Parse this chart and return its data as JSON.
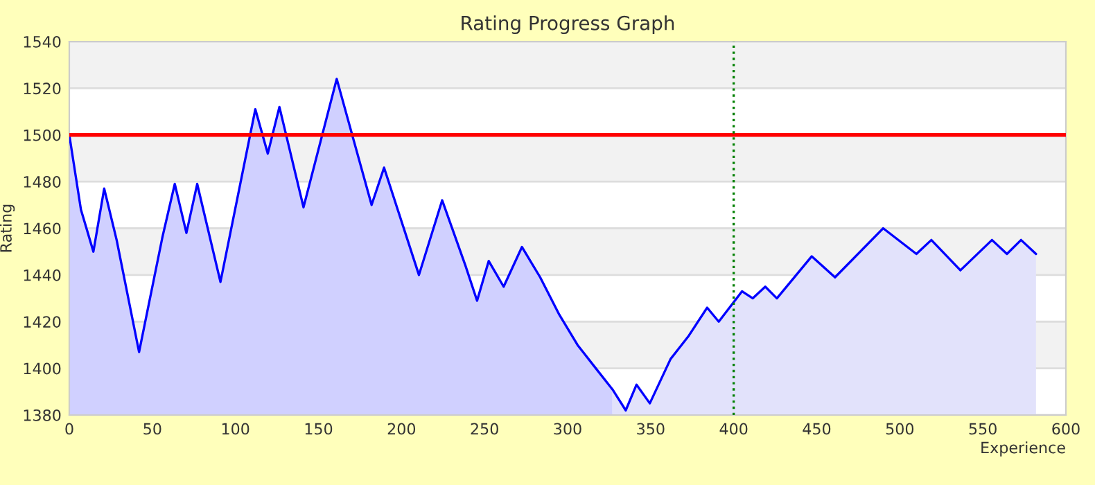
{
  "chart_data": {
    "type": "line",
    "title": "Rating Progress Graph",
    "xlabel": "Experience",
    "ylabel": "Rating",
    "xlim": [
      0,
      600
    ],
    "xticks": [
      0,
      50,
      100,
      150,
      200,
      250,
      300,
      350,
      400,
      450,
      500,
      550,
      600
    ],
    "ylim": [
      1380,
      1540
    ],
    "yticks": [
      1380,
      1400,
      1420,
      1440,
      1460,
      1480,
      1500,
      1520,
      1540
    ],
    "grid": "y",
    "marker": "none",
    "line_style": "solid",
    "legend": false,
    "bands": [
      {
        "axis": "y",
        "from": 1520,
        "to": 1540,
        "color": "#f2f2f2"
      },
      {
        "axis": "y",
        "from": 1480,
        "to": 1500,
        "color": "#f2f2f2"
      },
      {
        "axis": "y",
        "from": 1440,
        "to": 1460,
        "color": "#f2f2f2"
      },
      {
        "axis": "y",
        "from": 1400,
        "to": 1420,
        "color": "#f2f2f2"
      }
    ],
    "ref_lines": [
      {
        "axis": "y",
        "value": 1500,
        "color": "#ff0000",
        "line_style": "solid"
      },
      {
        "axis": "x",
        "value": 400,
        "color": "#008000",
        "line_style": "dotted"
      }
    ],
    "series": [
      {
        "type": "area",
        "color": "#d0d0ff",
        "x": [
          0,
          7,
          14.5,
          21,
          28.5,
          42,
          56,
          63.5,
          70.5,
          77,
          91,
          112,
          119.5,
          126.5,
          141,
          161,
          182,
          189.5,
          210.5,
          224.5,
          238.5,
          245.5,
          252.5,
          261.5,
          272.5,
          283.5,
          295,
          306,
          317,
          327
        ],
        "values": [
          1500,
          1468,
          1450,
          1477,
          1455,
          1407,
          1456,
          1479,
          1458,
          1479,
          1437,
          1511,
          1492,
          1512,
          1469,
          1524,
          1470,
          1486,
          1440,
          1472,
          1444,
          1429,
          1446,
          1435,
          1452,
          1439,
          1423,
          1410,
          1400,
          1391
        ]
      },
      {
        "type": "area",
        "color": "#e2e2fb",
        "x": [
          327,
          335,
          341.5,
          349.5,
          362,
          373,
          384,
          391,
          405,
          411.5,
          419,
          426,
          447,
          461,
          490,
          510,
          519,
          536.5,
          555.5,
          564.5,
          573,
          582
        ],
        "values": [
          1391,
          1382,
          1393,
          1385,
          1404,
          1414,
          1426,
          1420,
          1433,
          1430,
          1435,
          1430,
          1448,
          1439,
          1460,
          1449,
          1455,
          1442,
          1455,
          1449,
          1455,
          1449
        ]
      },
      {
        "color": "#0000ff",
        "x": [
          0,
          7,
          14.5,
          21,
          28.5,
          42,
          56,
          63.5,
          70.5,
          77,
          91,
          112,
          119.5,
          126.5,
          141,
          161,
          182,
          189.5,
          210.5,
          224.5,
          238.5,
          245.5,
          252.5,
          261.5,
          272.5,
          283.5,
          295,
          306,
          317,
          327,
          335,
          341.5,
          349.5,
          362,
          373,
          384,
          391,
          405,
          411.5,
          419,
          426,
          447,
          461,
          490,
          510,
          519,
          536.5,
          555.5,
          564.5,
          573,
          582
        ],
        "values": [
          1500,
          1468,
          1450,
          1477,
          1455,
          1407,
          1456,
          1479,
          1458,
          1479,
          1437,
          1511,
          1492,
          1512,
          1469,
          1524,
          1470,
          1486,
          1440,
          1472,
          1444,
          1429,
          1446,
          1435,
          1452,
          1439,
          1423,
          1410,
          1400,
          1391,
          1382,
          1393,
          1385,
          1404,
          1414,
          1426,
          1420,
          1433,
          1430,
          1435,
          1430,
          1448,
          1439,
          1460,
          1449,
          1455,
          1442,
          1455,
          1449,
          1455,
          1449
        ]
      }
    ]
  }
}
